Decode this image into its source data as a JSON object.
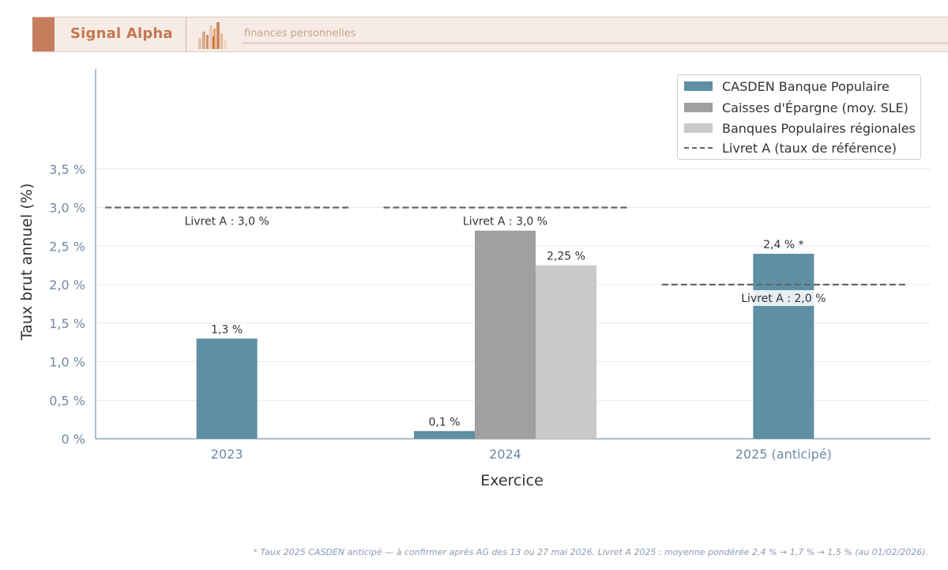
{
  "brand": {
    "name": "Signal Alpha",
    "tagline": "finances personnelles",
    "accent": "#c67e5e"
  },
  "chart_data": {
    "type": "bar",
    "categories": [
      "2023",
      "2024",
      "2025 (anticipé)"
    ],
    "series": [
      {
        "name": "CASDEN Banque Populaire",
        "color": "#5e8fa3",
        "values": [
          1.3,
          0.1,
          2.4
        ],
        "labels": [
          "1,3 %",
          "0,1 %",
          "2,4 % *"
        ]
      },
      {
        "name": "Caisses d'Épargne (moy. SLE)",
        "color": "#a0a0a0",
        "values": [
          null,
          2.7,
          null
        ],
        "labels": [
          "",
          "",
          ""
        ]
      },
      {
        "name": "Banques Populaires régionales",
        "color": "#c9c9c9",
        "values": [
          null,
          2.25,
          null
        ],
        "labels": [
          "",
          "2,25 %",
          ""
        ]
      }
    ],
    "reference_line": {
      "name": "Livret A (taux de référence)",
      "color": "#666666",
      "values": [
        3.0,
        3.0,
        2.0
      ],
      "labels": [
        "Livret A : 3,0 %",
        "Livret A : 3,0 %",
        "Livret A : 2,0 %"
      ]
    },
    "xlabel": "Exercice",
    "ylabel": "Taux brut annuel (%)",
    "ylim": [
      0,
      4.8
    ],
    "yticks": [
      0,
      0.5,
      1.0,
      1.5,
      2.0,
      2.5,
      3.0,
      3.5
    ],
    "ytick_labels": [
      "0 %",
      "0,5 %",
      "1,0 %",
      "1,5 %",
      "2,0 %",
      "2,5 %",
      "3,0 %",
      "3,5 %"
    ],
    "grid": true,
    "legend_position": "top-right"
  },
  "footnote": "* Taux 2025 CASDEN anticipé — à confirmer après AG des 13 ou 27 mai 2026.   Livret A 2025 : moyenne pondérée 2,4 % → 1,7 % → 1,5 % (au 01/02/2026)."
}
